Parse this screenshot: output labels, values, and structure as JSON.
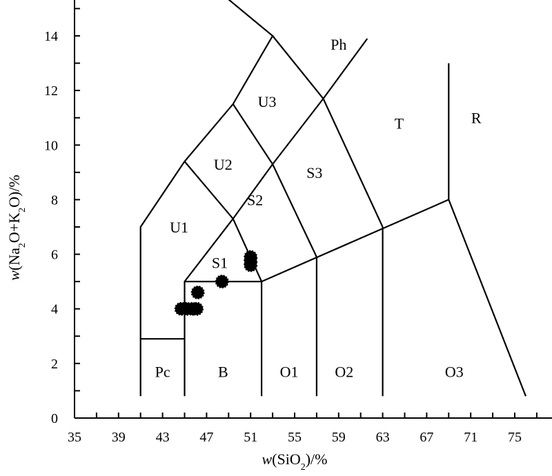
{
  "chart_data": {
    "type": "scatter",
    "title": "",
    "xlabel": {
      "prefix": "w",
      "text_before_sub": "(SiO",
      "sub": "2",
      "text_after_sub": ")/%"
    },
    "ylabel": {
      "prefix": "w",
      "text": "(Na",
      "sub1": "2",
      "mid": "O+K",
      "sub2": "2",
      "end": "O)/%"
    },
    "xlim": [
      35,
      77
    ],
    "ylim": [
      0,
      15.2
    ],
    "x_ticks": [
      35,
      39,
      43,
      47,
      51,
      55,
      59,
      63,
      67,
      71,
      75
    ],
    "x_minor_step": 2,
    "y_ticks": [
      0,
      2,
      4,
      6,
      8,
      10,
      12,
      14
    ],
    "y_minor_step": 1,
    "grid": false,
    "boundaries": [
      [
        [
          41,
          0.8
        ],
        [
          41,
          7
        ],
        [
          45,
          9.4
        ],
        [
          49.4,
          11.5
        ],
        [
          53,
          14
        ],
        [
          48.5,
          15.5
        ]
      ],
      [
        [
          41,
          2.9
        ],
        [
          45,
          2.9
        ]
      ],
      [
        [
          45,
          0.8
        ],
        [
          45,
          5
        ],
        [
          49.4,
          7.3
        ],
        [
          53,
          9.3
        ],
        [
          57.6,
          11.7
        ],
        [
          61.6,
          13.9
        ]
      ],
      [
        [
          45,
          5
        ],
        [
          52,
          5
        ],
        [
          69,
          8
        ],
        [
          76,
          0.8
        ]
      ],
      [
        [
          52,
          0.8
        ],
        [
          52,
          5
        ]
      ],
      [
        [
          57,
          0.8
        ],
        [
          57,
          5.9
        ]
      ],
      [
        [
          63,
          0.8
        ],
        [
          63,
          7
        ]
      ],
      [
        [
          45,
          9.4
        ],
        [
          49.4,
          7.3
        ],
        [
          52,
          5
        ]
      ],
      [
        [
          49.4,
          11.5
        ],
        [
          53,
          9.3
        ],
        [
          57,
          5.9
        ]
      ],
      [
        [
          53,
          14
        ],
        [
          57.6,
          11.7
        ],
        [
          63,
          7
        ]
      ],
      [
        [
          69,
          8
        ],
        [
          69,
          13
        ]
      ]
    ],
    "regions": [
      {
        "name": "Pc",
        "x": 43,
        "y": 1.7
      },
      {
        "name": "B",
        "x": 48.5,
        "y": 1.7
      },
      {
        "name": "O1",
        "x": 54.5,
        "y": 1.7
      },
      {
        "name": "O2",
        "x": 59.5,
        "y": 1.7
      },
      {
        "name": "O3",
        "x": 69.5,
        "y": 1.7
      },
      {
        "name": "S1",
        "x": 48.2,
        "y": 5.7
      },
      {
        "name": "S2",
        "x": 51.4,
        "y": 8
      },
      {
        "name": "S3",
        "x": 56.8,
        "y": 9
      },
      {
        "name": "U1",
        "x": 44.5,
        "y": 7
      },
      {
        "name": "U2",
        "x": 48.5,
        "y": 9.3
      },
      {
        "name": "U3",
        "x": 52.5,
        "y": 11.6
      },
      {
        "name": "Ph",
        "x": 59,
        "y": 13.7
      },
      {
        "name": "T",
        "x": 64.5,
        "y": 10.8
      },
      {
        "name": "R",
        "x": 71.5,
        "y": 11
      }
    ],
    "points": [
      {
        "x": 44.7,
        "y": 4.0
      },
      {
        "x": 45.2,
        "y": 4.0
      },
      {
        "x": 45.7,
        "y": 4.0
      },
      {
        "x": 46.1,
        "y": 4.0
      },
      {
        "x": 46.2,
        "y": 4.6
      },
      {
        "x": 48.4,
        "y": 5.0
      },
      {
        "x": 51.0,
        "y": 5.6
      },
      {
        "x": 51.0,
        "y": 5.75
      },
      {
        "x": 51.0,
        "y": 5.9
      }
    ]
  }
}
